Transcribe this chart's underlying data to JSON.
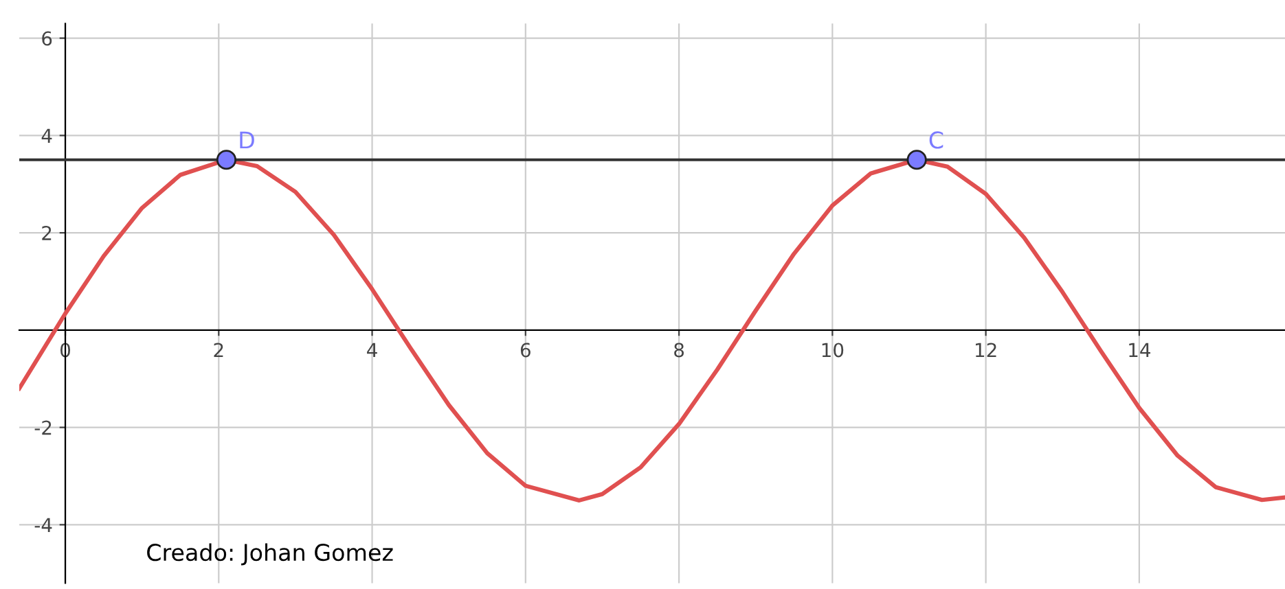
{
  "chart_data": {
    "type": "line",
    "x": [
      -0.6,
      0,
      0.5,
      1,
      1.5,
      2.1,
      2.5,
      3,
      3.5,
      4,
      4.5,
      5,
      5.5,
      6,
      6.7,
      7,
      7.5,
      8,
      8.5,
      9,
      9.5,
      10,
      10.5,
      11.1,
      11.5,
      12,
      12.5,
      13,
      13.5,
      14,
      14.5,
      15,
      15.6,
      15.9
    ],
    "series": [
      {
        "color": "#e05050",
        "values": [
          -1.2,
          0.34,
          1.52,
          2.51,
          3.19,
          3.5,
          3.37,
          2.84,
          1.96,
          0.84,
          -0.37,
          -1.54,
          -2.53,
          -3.2,
          -3.5,
          -3.37,
          -2.82,
          -1.93,
          -0.81,
          0.4,
          1.57,
          2.56,
          3.22,
          3.5,
          3.36,
          2.8,
          1.9,
          0.78,
          -0.43,
          -1.6,
          -2.58,
          -3.23,
          -3.49,
          -3.44
        ]
      },
      {
        "type": "scatter",
        "name": "D",
        "color": "#7b7bff",
        "x": [
          2.1
        ],
        "values": [
          3.5
        ]
      },
      {
        "type": "scatter",
        "name": "C",
        "color": "#7b7bff",
        "x": [
          11.1
        ],
        "values": [
          3.5
        ]
      }
    ],
    "xlim": [
      -0.6,
      15.9
    ],
    "ylim": [
      -5.2,
      6.3
    ],
    "xticks": [
      0,
      2,
      4,
      6,
      8,
      10,
      12,
      14
    ],
    "yticks": [
      -4,
      -2,
      2,
      4,
      6
    ],
    "ref_lines": [
      {
        "axis": "y",
        "value": 3.5,
        "label": null,
        "color": "#333333"
      }
    ],
    "grid": true,
    "annotations": [
      "Creado: Johan Gomez"
    ]
  }
}
